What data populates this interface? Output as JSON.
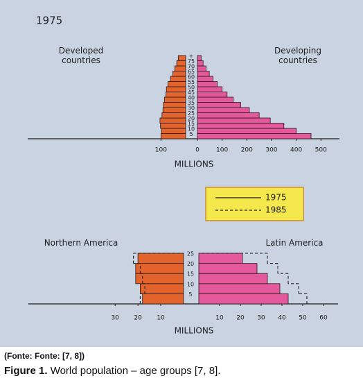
{
  "chart_data": [
    {
      "type": "pyramid",
      "title": "1975",
      "left_label": "Developed countries",
      "right_label": "Developing countries",
      "x_label": "MILLIONS",
      "categories": [
        "5",
        "10",
        "15",
        "20",
        "25",
        "30",
        "35",
        "40",
        "45",
        "50",
        "55",
        "60",
        "65",
        "70",
        "75",
        "+"
      ],
      "xlim_left": [
        0,
        640
      ],
      "xticks_left": [
        100
      ],
      "xlim_right": [
        0,
        575
      ],
      "xticks_right": [
        0,
        100,
        200,
        300,
        400,
        500
      ],
      "series": [
        {
          "side": "left",
          "style": "solid",
          "color": "#e2642c",
          "values": [
            100,
            98,
            102,
            104,
            96,
            92,
            90,
            86,
            80,
            78,
            72,
            62,
            52,
            44,
            36,
            30
          ]
        },
        {
          "side": "right",
          "style": "solid",
          "color": "#e4589c",
          "values": [
            460,
            400,
            350,
            295,
            250,
            210,
            175,
            145,
            120,
            100,
            80,
            63,
            48,
            35,
            23,
            15
          ]
        }
      ]
    },
    {
      "type": "pyramid",
      "left_label": "Northern America",
      "right_label": "Latin America",
      "x_label": "MILLIONS",
      "categories": [
        "5",
        "10",
        "15",
        "20",
        "25"
      ],
      "xlim_left": [
        0,
        68
      ],
      "xticks_left": [
        30,
        20,
        10
      ],
      "xlim_right": [
        0,
        67
      ],
      "xticks_right": [
        10,
        20,
        30,
        40,
        50,
        60
      ],
      "legend": [
        {
          "name": "1975",
          "style": "solid"
        },
        {
          "name": "1985",
          "style": "dashed"
        }
      ],
      "series": [
        {
          "side": "left",
          "style": "solid",
          "color": "#e2642c",
          "values": [
            18,
            19,
            21,
            21,
            20
          ]
        },
        {
          "side": "left",
          "style": "dashed",
          "color": "#222222",
          "values": [
            19,
            17,
            18,
            19,
            22
          ]
        },
        {
          "side": "right",
          "style": "solid",
          "color": "#e4589c",
          "values": [
            43,
            39,
            33,
            28,
            21
          ]
        },
        {
          "side": "right",
          "style": "dashed",
          "color": "#222222",
          "values": [
            52,
            48,
            43,
            38,
            33
          ]
        }
      ]
    }
  ],
  "caption": {
    "source": "(Fonte: Fonte: [7, 8])",
    "label": "Figure 1.",
    "text": "World population – age groups [7, 8]."
  }
}
